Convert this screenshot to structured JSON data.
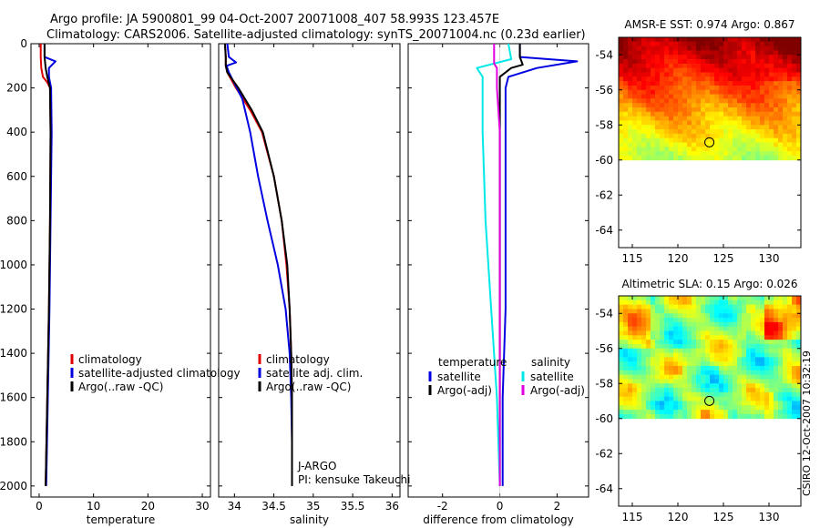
{
  "header": {
    "line1": "Argo profile: JA 5900801_99 04-Oct-2007 20071008_407 58.993S 123.457E",
    "line2": "Climatology: CARS2006. Satellite-adjusted climatology: synTS_20071004.nc (0.23d earlier)"
  },
  "footer_stamp": "CSIRO 12-Oct-2007 10:32:19",
  "colors": {
    "red": "#e00000",
    "blue": "#0000e0",
    "black": "#000000",
    "cyan": "#00e8e8",
    "magenta": "#e000e0"
  },
  "chart_data": [
    {
      "type": "line",
      "id": "temperature",
      "xlabel": "temperature",
      "xlim": [
        -1.5,
        31.5
      ],
      "ylim": [
        2050,
        0
      ],
      "xticks": [
        0,
        10,
        20,
        30
      ],
      "yticks": [
        0,
        200,
        400,
        600,
        800,
        1000,
        1200,
        1400,
        1600,
        1800,
        2000
      ],
      "legend": [
        "climatology",
        "satellite-adjusted climatology",
        "Argo(..raw -QC)"
      ],
      "series": [
        {
          "name": "climatology",
          "color": "red",
          "points": [
            [
              0.3,
              0
            ],
            [
              0.3,
              60
            ],
            [
              0.4,
              110
            ],
            [
              0.7,
              150
            ],
            [
              1.5,
              175
            ],
            [
              2.0,
              200
            ],
            [
              2.1,
              400
            ],
            [
              2.0,
              800
            ],
            [
              1.8,
              1200
            ],
            [
              1.5,
              1600
            ],
            [
              1.2,
              2000
            ]
          ]
        },
        {
          "name": "satellite-adjusted climatology",
          "color": "blue",
          "points": [
            [
              1.0,
              0
            ],
            [
              1.0,
              60
            ],
            [
              3.0,
              80
            ],
            [
              1.8,
              110
            ],
            [
              1.8,
              150
            ],
            [
              2.2,
              200
            ],
            [
              2.3,
              400
            ],
            [
              2.1,
              800
            ],
            [
              1.9,
              1200
            ],
            [
              1.6,
              1600
            ],
            [
              1.3,
              2000
            ]
          ]
        },
        {
          "name": "Argo(..raw -QC)",
          "color": "black",
          "points": [
            [
              1.0,
              0
            ],
            [
              1.0,
              60
            ],
            [
              1.2,
              110
            ],
            [
              1.5,
              150
            ],
            [
              2.0,
              200
            ],
            [
              2.1,
              400
            ],
            [
              2.0,
              800
            ],
            [
              1.8,
              1200
            ],
            [
              1.5,
              1600
            ],
            [
              1.2,
              2000
            ]
          ]
        }
      ]
    },
    {
      "type": "line",
      "id": "salinity",
      "xlabel": "salinity",
      "xlim": [
        33.8,
        36.1
      ],
      "ylim": [
        2050,
        0
      ],
      "xticks": [
        34,
        34.5,
        35,
        35.5,
        36
      ],
      "legend": [
        "climatology",
        "satellite adj. clim.",
        "Argo(..raw -QC)"
      ],
      "annotation": [
        "J-ARGO",
        "PI: kensuke Takeuchi"
      ],
      "series": [
        {
          "name": "climatology",
          "color": "red",
          "points": [
            [
              33.88,
              0
            ],
            [
              33.89,
              60
            ],
            [
              33.89,
              100
            ],
            [
              33.91,
              130
            ],
            [
              34.02,
              200
            ],
            [
              34.2,
              300
            ],
            [
              34.35,
              400
            ],
            [
              34.5,
              600
            ],
            [
              34.6,
              800
            ],
            [
              34.66,
              1000
            ],
            [
              34.7,
              1200
            ],
            [
              34.72,
              1400
            ],
            [
              34.73,
              1600
            ],
            [
              34.73,
              1800
            ],
            [
              34.73,
              2000
            ]
          ]
        },
        {
          "name": "satellite adj. clim.",
          "color": "blue",
          "points": [
            [
              33.91,
              0
            ],
            [
              33.93,
              60
            ],
            [
              34.02,
              85
            ],
            [
              33.9,
              100
            ],
            [
              33.93,
              130
            ],
            [
              34.1,
              250
            ],
            [
              34.2,
              400
            ],
            [
              34.3,
              600
            ],
            [
              34.42,
              800
            ],
            [
              34.55,
              1000
            ],
            [
              34.65,
              1200
            ],
            [
              34.7,
              1400
            ],
            [
              34.72,
              1600
            ],
            [
              34.73,
              1800
            ],
            [
              34.73,
              2000
            ]
          ]
        },
        {
          "name": "Argo(..raw -QC)",
          "color": "black",
          "points": [
            [
              33.88,
              0
            ],
            [
              33.89,
              60
            ],
            [
              33.89,
              100
            ],
            [
              33.91,
              130
            ],
            [
              34.05,
              200
            ],
            [
              34.22,
              300
            ],
            [
              34.36,
              400
            ],
            [
              34.5,
              600
            ],
            [
              34.6,
              800
            ],
            [
              34.67,
              1000
            ],
            [
              34.7,
              1200
            ],
            [
              34.72,
              1400
            ],
            [
              34.73,
              1600
            ],
            [
              34.73,
              1800
            ],
            [
              34.73,
              2000
            ]
          ]
        }
      ]
    },
    {
      "type": "line",
      "id": "difference",
      "xlabel": "difference from climatology",
      "xlim": [
        -3.2,
        3.1
      ],
      "ylim": [
        2050,
        0
      ],
      "xticks": [
        -2,
        0,
        2
      ],
      "legend_title_left": "temperature",
      "legend_title_right": "salinity",
      "legend": [
        "satellite",
        "Argo(-adj)",
        "satellite",
        "Argo(-adj)"
      ],
      "series": [
        {
          "name": "temperature satellite",
          "color": "blue",
          "points": [
            [
              0.7,
              0
            ],
            [
              0.7,
              60
            ],
            [
              2.7,
              80
            ],
            [
              1.3,
              110
            ],
            [
              0.3,
              150
            ],
            [
              0.2,
              200
            ],
            [
              0.2,
              800
            ],
            [
              0.2,
              1200
            ],
            [
              0.1,
              1600
            ],
            [
              0.1,
              2000
            ]
          ]
        },
        {
          "name": "temperature Argo(-adj)",
          "color": "black",
          "points": [
            [
              0.7,
              0
            ],
            [
              0.7,
              60
            ],
            [
              0.8,
              95
            ],
            [
              0.4,
              110
            ],
            [
              0.0,
              150
            ],
            [
              0.0,
              200
            ],
            [
              0.0,
              800
            ],
            [
              0.0,
              1200
            ],
            [
              0.0,
              1600
            ],
            [
              0.0,
              2000
            ]
          ]
        },
        {
          "name": "salinity satellite",
          "color": "cyan",
          "points": [
            [
              0.3,
              0
            ],
            [
              0.4,
              70
            ],
            [
              -0.8,
              110
            ],
            [
              -0.6,
              150
            ],
            [
              -0.6,
              400
            ],
            [
              -0.5,
              800
            ],
            [
              -0.3,
              1200
            ],
            [
              -0.1,
              1600
            ],
            [
              0.0,
              2000
            ]
          ]
        },
        {
          "name": "salinity Argo(-adj)",
          "color": "magenta",
          "points": [
            [
              -0.2,
              0
            ],
            [
              -0.2,
              90
            ],
            [
              -0.1,
              110
            ],
            [
              -0.1,
              200
            ],
            [
              0.0,
              400
            ],
            [
              0.0,
              800
            ],
            [
              0.0,
              1200
            ],
            [
              0.0,
              1600
            ],
            [
              0.0,
              2000
            ]
          ]
        }
      ]
    },
    {
      "type": "heatmap",
      "id": "sst-map",
      "title": "AMSR-E SST: 0.974 Argo: 0.867",
      "xlim": [
        113.5,
        133.5
      ],
      "ylim": [
        -65,
        -53
      ],
      "xticks": [
        115,
        120,
        125,
        130
      ],
      "yticks": [
        -54,
        -56,
        -58,
        -60,
        -62,
        -64
      ],
      "data_ylim": [
        -60,
        -53
      ],
      "float_position": [
        123.457,
        -58.993
      ]
    },
    {
      "type": "heatmap",
      "id": "sla-map",
      "title": "Altimetric SLA: 0.15 Argo: 0.026",
      "xlim": [
        113.5,
        133.5
      ],
      "ylim": [
        -65,
        -53
      ],
      "xticks": [
        115,
        120,
        125,
        130
      ],
      "yticks": [
        -54,
        -56,
        -58,
        -60,
        -62,
        -64
      ],
      "data_ylim": [
        -60,
        -53
      ],
      "float_position": [
        123.457,
        -58.993
      ]
    }
  ]
}
